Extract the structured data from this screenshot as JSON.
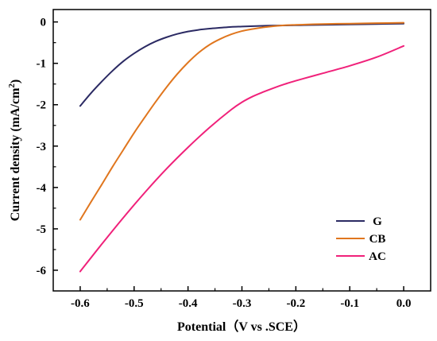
{
  "chart_data": {
    "type": "line",
    "title": "",
    "xlabel": "Potential（V vs .SCE）",
    "ylabel_prefix": "Current density (mA/cm",
    "ylabel_sup": "2",
    "ylabel_suffix": ")",
    "xlim": [
      -0.65,
      0.05
    ],
    "ylim": [
      -6.5,
      0.3
    ],
    "xticks": [
      -0.6,
      -0.5,
      -0.4,
      -0.3,
      -0.2,
      -0.1,
      0.0
    ],
    "xtick_labels": [
      "-0.6",
      "-0.5",
      "-0.4",
      "-0.3",
      "-0.2",
      "-0.1",
      "0.0"
    ],
    "yticks": [
      0,
      -1,
      -2,
      -3,
      -4,
      -5,
      -6
    ],
    "ytick_labels": [
      "0",
      "-1",
      "-2",
      "-3",
      "-4",
      "-5",
      "-6"
    ],
    "grid": false,
    "legend_position": "bottom-right",
    "series": [
      {
        "name": "G",
        "color": "#2b2a63",
        "x": [
          -0.6,
          -0.58,
          -0.56,
          -0.54,
          -0.52,
          -0.5,
          -0.48,
          -0.46,
          -0.44,
          -0.42,
          -0.4,
          -0.38,
          -0.36,
          -0.34,
          -0.32,
          -0.3,
          -0.25,
          -0.2,
          -0.15,
          -0.1,
          -0.05,
          0.0
        ],
        "y": [
          -2.03,
          -1.72,
          -1.44,
          -1.18,
          -0.95,
          -0.76,
          -0.6,
          -0.47,
          -0.37,
          -0.29,
          -0.23,
          -0.19,
          -0.16,
          -0.14,
          -0.12,
          -0.11,
          -0.09,
          -0.08,
          -0.07,
          -0.06,
          -0.05,
          -0.04
        ]
      },
      {
        "name": "CB",
        "color": "#e0761e",
        "x": [
          -0.6,
          -0.58,
          -0.56,
          -0.54,
          -0.52,
          -0.5,
          -0.48,
          -0.46,
          -0.44,
          -0.42,
          -0.4,
          -0.38,
          -0.36,
          -0.34,
          -0.32,
          -0.3,
          -0.28,
          -0.26,
          -0.24,
          -0.22,
          -0.2,
          -0.15,
          -0.1,
          -0.05,
          0.0
        ],
        "y": [
          -4.78,
          -4.35,
          -3.93,
          -3.5,
          -3.09,
          -2.68,
          -2.3,
          -1.93,
          -1.58,
          -1.26,
          -0.98,
          -0.74,
          -0.55,
          -0.41,
          -0.3,
          -0.22,
          -0.17,
          -0.13,
          -0.1,
          -0.08,
          -0.07,
          -0.05,
          -0.04,
          -0.03,
          -0.02
        ]
      },
      {
        "name": "AC",
        "color": "#f0217a",
        "x": [
          -0.6,
          -0.56,
          -0.52,
          -0.48,
          -0.44,
          -0.4,
          -0.36,
          -0.32,
          -0.3,
          -0.28,
          -0.26,
          -0.24,
          -0.22,
          -0.2,
          -0.15,
          -0.1,
          -0.05,
          0.0
        ],
        "y": [
          -6.03,
          -5.37,
          -4.73,
          -4.12,
          -3.55,
          -3.03,
          -2.55,
          -2.12,
          -1.94,
          -1.8,
          -1.69,
          -1.59,
          -1.5,
          -1.42,
          -1.24,
          -1.06,
          -0.85,
          -0.58
        ]
      }
    ]
  }
}
